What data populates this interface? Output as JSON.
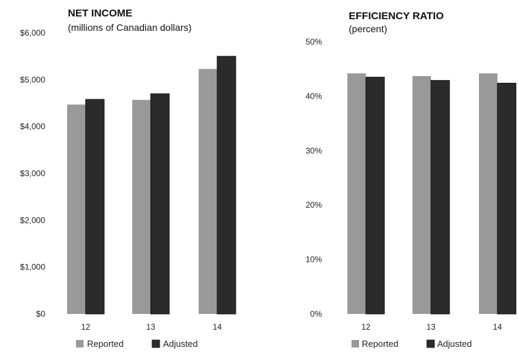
{
  "colors": {
    "reported": "#999999",
    "adjusted": "#2b2b2b",
    "outline": "#111111"
  },
  "legend": {
    "reported": "Reported",
    "adjusted": "Adjusted"
  },
  "chart_data": [
    {
      "type": "bar",
      "title": "NET INCOME",
      "subtitle": "(millions of Canadian dollars)",
      "categories": [
        "12",
        "13",
        "14"
      ],
      "series": [
        {
          "name": "Reported",
          "values": [
            4470,
            4570,
            5230
          ]
        },
        {
          "name": "Adjusted",
          "values": [
            4580,
            4700,
            5500
          ]
        }
      ],
      "ylim": [
        0,
        6000
      ],
      "yticks": [
        0,
        1000,
        2000,
        3000,
        4000,
        5000,
        6000
      ],
      "ytick_labels": [
        "$0",
        "$1,000",
        "$2,000",
        "$3,000",
        "$4,000",
        "$5,000",
        "$6,000"
      ],
      "grid": false,
      "legend_position": "bottom"
    },
    {
      "type": "bar",
      "title": "EFFICIENCY RATIO",
      "subtitle": "(percent)",
      "categories": [
        "12",
        "13",
        "14"
      ],
      "series": [
        {
          "name": "Reported",
          "values": [
            44.2,
            43.7,
            44.2
          ]
        },
        {
          "name": "Adjusted",
          "values": [
            43.5,
            42.9,
            42.4
          ]
        }
      ],
      "ylim": [
        0,
        50
      ],
      "yticks": [
        0,
        10,
        20,
        30,
        40,
        50
      ],
      "ytick_labels": [
        "0%",
        "10%",
        "20%",
        "30%",
        "40%",
        "50%"
      ],
      "grid": false,
      "legend_position": "bottom"
    }
  ]
}
